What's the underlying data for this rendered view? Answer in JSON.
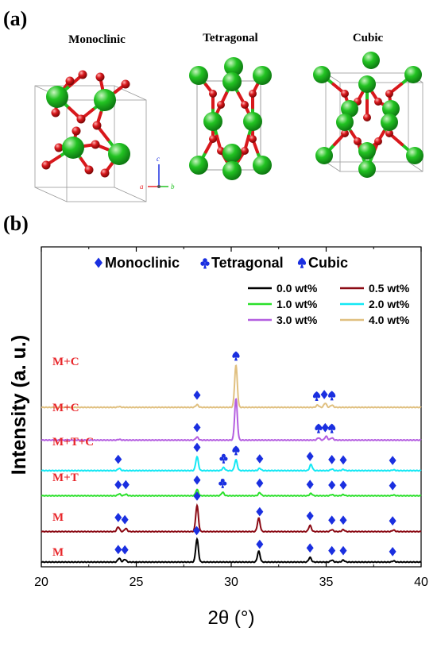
{
  "panel_a": {
    "label": "(a)",
    "structures": [
      {
        "title": "Monoclinic"
      },
      {
        "title": "Tetragonal"
      },
      {
        "title": "Cubic"
      }
    ],
    "crystal_axes": {
      "a": "a",
      "b": "b",
      "c": "c"
    },
    "colors": {
      "zr": "#22c322",
      "o": "#d8181c",
      "cell": "#9a9a9a"
    }
  },
  "panel_b": {
    "label": "(b)",
    "phase_legend": [
      {
        "symbol": "diamond",
        "label": "Monoclinic"
      },
      {
        "symbol": "club",
        "label": "Tetragonal"
      },
      {
        "symbol": "spade",
        "label": "Cubic"
      }
    ],
    "marker_color": "#1a2fe0",
    "trace_label_color": "#e8262a",
    "chart_data": {
      "type": "line",
      "xlabel": "2θ (°)",
      "ylabel": "Intensity (a. u.)",
      "xlim": [
        20,
        40
      ],
      "xticks": [
        "20",
        "25",
        "30",
        "35",
        "40"
      ],
      "series": [
        {
          "name": "0.0 wt%",
          "color": "#000000",
          "label": "M",
          "baseline": 0,
          "peaks": [
            [
              24.1,
              0.1
            ],
            [
              24.4,
              0.07
            ],
            [
              28.2,
              0.6
            ],
            [
              31.45,
              0.28
            ],
            [
              34.15,
              0.12
            ],
            [
              35.3,
              0.05
            ],
            [
              35.9,
              0.05
            ],
            [
              38.55,
              0.03
            ]
          ],
          "markers": [
            [
              "diamond",
              24.05
            ],
            [
              "diamond",
              24.4
            ],
            [
              "diamond",
              28.18
            ],
            [
              "diamond",
              31.5
            ],
            [
              "diamond",
              34.15
            ],
            [
              "diamond",
              35.3
            ],
            [
              "diamond",
              35.9
            ],
            [
              "diamond",
              38.5
            ]
          ]
        },
        {
          "name": "0.5 wt%",
          "color": "#8b0a14",
          "label": "M",
          "baseline": 0.8,
          "peaks": [
            [
              24.05,
              0.12
            ],
            [
              24.45,
              0.08
            ],
            [
              28.2,
              0.68
            ],
            [
              31.45,
              0.35
            ],
            [
              34.15,
              0.16
            ],
            [
              35.3,
              0.05
            ],
            [
              35.9,
              0.05
            ],
            [
              38.55,
              0.04
            ]
          ],
          "markers": [
            [
              "diamond",
              24.05
            ],
            [
              "diamond",
              24.4
            ],
            [
              "diamond",
              28.2
            ],
            [
              "diamond",
              31.5
            ],
            [
              "diamond",
              34.15
            ],
            [
              "diamond",
              35.3
            ],
            [
              "diamond",
              35.9
            ],
            [
              "diamond",
              38.5
            ]
          ]
        },
        {
          "name": "1.0 wt%",
          "color": "#2ae02a",
          "label": "M+T",
          "baseline": 1.74,
          "peaks": [
            [
              24.1,
              0.05
            ],
            [
              24.45,
              0.04
            ],
            [
              28.2,
              0.16
            ],
            [
              29.55,
              0.09
            ],
            [
              31.5,
              0.08
            ],
            [
              34.2,
              0.06
            ],
            [
              35.3,
              0.03
            ],
            [
              35.9,
              0.03
            ],
            [
              38.55,
              0.02
            ]
          ],
          "markers": [
            [
              "diamond",
              24.05
            ],
            [
              "diamond",
              24.45
            ],
            [
              "diamond",
              28.2
            ],
            [
              "club",
              29.55
            ],
            [
              "diamond",
              31.5
            ],
            [
              "diamond",
              34.15
            ],
            [
              "diamond",
              35.3
            ],
            [
              "diamond",
              35.9
            ],
            [
              "diamond",
              38.5
            ]
          ]
        },
        {
          "name": "2.0 wt%",
          "color": "#14e8f4",
          "label": "M+T+C",
          "baseline": 2.4,
          "peaks": [
            [
              24.1,
              0.06
            ],
            [
              28.2,
              0.36
            ],
            [
              29.6,
              0.08
            ],
            [
              30.25,
              0.28
            ],
            [
              31.5,
              0.06
            ],
            [
              34.2,
              0.16
            ],
            [
              35.3,
              0.04
            ],
            [
              35.9,
              0.03
            ],
            [
              38.55,
              0.02
            ]
          ],
          "markers": [
            [
              "diamond",
              24.05
            ],
            [
              "diamond",
              28.2
            ],
            [
              "club",
              29.6
            ],
            [
              "spade",
              30.25
            ],
            [
              "diamond",
              31.5
            ],
            [
              "diamond",
              34.15
            ],
            [
              "diamond",
              35.3
            ],
            [
              "diamond",
              35.9
            ],
            [
              "diamond",
              38.5
            ]
          ]
        },
        {
          "name": "3.0 wt%",
          "color": "#b45ee0",
          "label": "M+C",
          "baseline": 3.2,
          "peaks": [
            [
              24.1,
              0.02
            ],
            [
              28.2,
              0.08
            ],
            [
              30.25,
              1.08
            ],
            [
              34.6,
              0.06
            ],
            [
              35.0,
              0.1
            ],
            [
              35.3,
              0.06
            ]
          ],
          "markers": [
            [
              "diamond",
              28.2
            ],
            [
              "spade",
              34.6
            ],
            [
              "diamond",
              34.95
            ],
            [
              "spade",
              35.3
            ]
          ]
        },
        {
          "name": "4.0 wt%",
          "color": "#e0c080",
          "label": "M+C",
          "baseline": 4.06,
          "peaks": [
            [
              24.1,
              0.02
            ],
            [
              28.2,
              0.07
            ],
            [
              30.25,
              1.1
            ],
            [
              34.55,
              0.06
            ],
            [
              34.95,
              0.11
            ],
            [
              35.3,
              0.06
            ]
          ],
          "markers": [
            [
              "diamond",
              28.2
            ],
            [
              "spade",
              30.25
            ],
            [
              "spade",
              34.5
            ],
            [
              "diamond",
              34.9
            ],
            [
              "spade",
              35.3
            ]
          ]
        }
      ],
      "legend_placement": "top-right"
    }
  }
}
